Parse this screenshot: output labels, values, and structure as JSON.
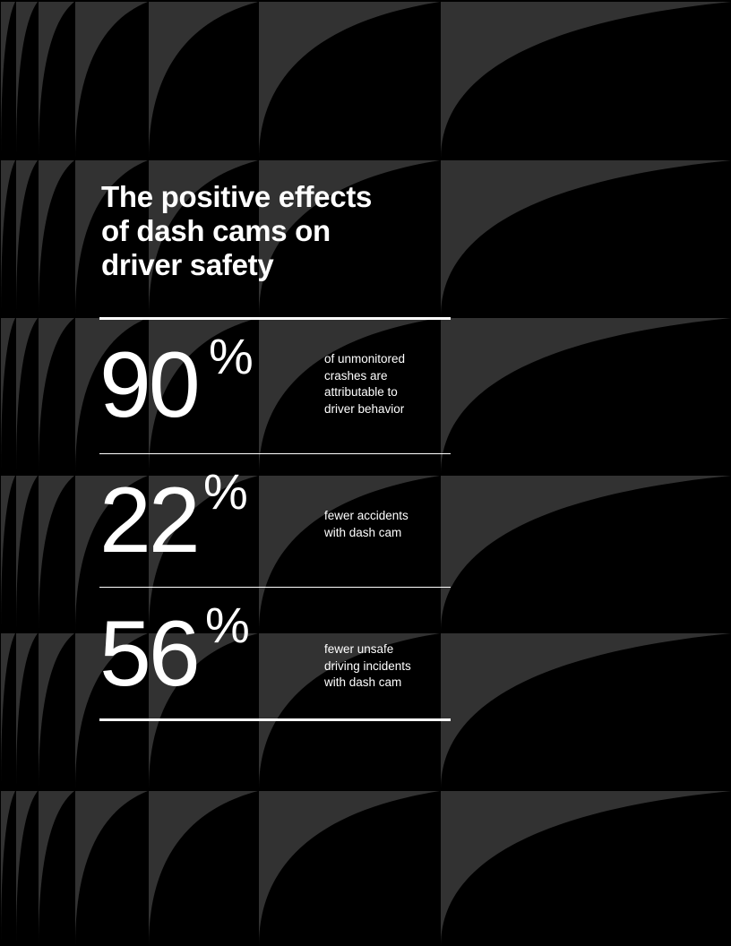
{
  "background": {
    "pattern": "curved-grid",
    "colors": {
      "dark": "#000000",
      "gray": "#323232"
    }
  },
  "title": "The positive effects of dash cams on driver safety",
  "title_lines": [
    "The positive effects",
    "of dash cams on",
    "driver safety"
  ],
  "stats": [
    {
      "value": "90",
      "unit": "%",
      "description_lines": [
        "of unmonitored",
        "crashes are",
        "attributable to",
        "driver behavior"
      ]
    },
    {
      "value": "22",
      "unit": "%",
      "description_lines": [
        "fewer accidents",
        "with dash cam"
      ]
    },
    {
      "value": "56",
      "unit": "%",
      "description_lines": [
        "fewer unsafe",
        "driving incidents",
        "with dash cam"
      ]
    }
  ]
}
